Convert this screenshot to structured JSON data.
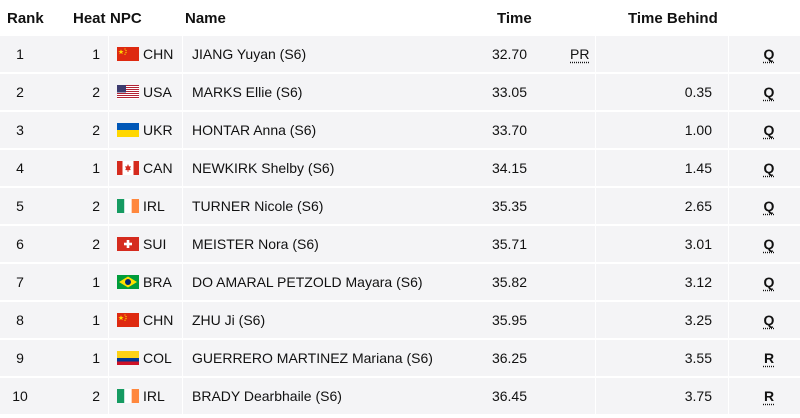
{
  "headers": {
    "rank": "Rank",
    "heat": "Heat",
    "npc": "NPC",
    "name": "Name",
    "time": "Time",
    "time_behind": "Time Behind"
  },
  "rows": [
    {
      "rank": "1",
      "heat": "1",
      "flag": "flag-chn-icon",
      "npc": "CHN",
      "name": "JIANG Yuyan (S6)",
      "time": "32.70",
      "pr": "PR",
      "behind": "",
      "qual": "Q"
    },
    {
      "rank": "2",
      "heat": "2",
      "flag": "flag-usa-icon",
      "npc": "USA",
      "name": "MARKS Ellie (S6)",
      "time": "33.05",
      "pr": "",
      "behind": "0.35",
      "qual": "Q"
    },
    {
      "rank": "3",
      "heat": "2",
      "flag": "flag-ukr-icon",
      "npc": "UKR",
      "name": "HONTAR Anna (S6)",
      "time": "33.70",
      "pr": "",
      "behind": "1.00",
      "qual": "Q"
    },
    {
      "rank": "4",
      "heat": "1",
      "flag": "flag-can-icon",
      "npc": "CAN",
      "name": "NEWKIRK Shelby (S6)",
      "time": "34.15",
      "pr": "",
      "behind": "1.45",
      "qual": "Q"
    },
    {
      "rank": "5",
      "heat": "2",
      "flag": "flag-irl-icon",
      "npc": "IRL",
      "name": "TURNER Nicole (S6)",
      "time": "35.35",
      "pr": "",
      "behind": "2.65",
      "qual": "Q"
    },
    {
      "rank": "6",
      "heat": "2",
      "flag": "flag-sui-icon",
      "npc": "SUI",
      "name": "MEISTER Nora (S6)",
      "time": "35.71",
      "pr": "",
      "behind": "3.01",
      "qual": "Q"
    },
    {
      "rank": "7",
      "heat": "1",
      "flag": "flag-bra-icon",
      "npc": "BRA",
      "name": "DO AMARAL PETZOLD Mayara (S6)",
      "time": "35.82",
      "pr": "",
      "behind": "3.12",
      "qual": "Q"
    },
    {
      "rank": "8",
      "heat": "1",
      "flag": "flag-chn-icon",
      "npc": "CHN",
      "name": "ZHU Ji (S6)",
      "time": "35.95",
      "pr": "",
      "behind": "3.25",
      "qual": "Q"
    },
    {
      "rank": "9",
      "heat": "1",
      "flag": "flag-col-icon",
      "npc": "COL",
      "name": "GUERRERO MARTINEZ Mariana (S6)",
      "time": "36.25",
      "pr": "",
      "behind": "3.55",
      "qual": "R"
    },
    {
      "rank": "10",
      "heat": "2",
      "flag": "flag-irl-icon",
      "npc": "IRL",
      "name": "BRADY Dearbhaile (S6)",
      "time": "36.45",
      "pr": "",
      "behind": "3.75",
      "qual": "R"
    }
  ],
  "colors": {
    "row_bg": "#f4f4f6",
    "text": "#111111"
  }
}
